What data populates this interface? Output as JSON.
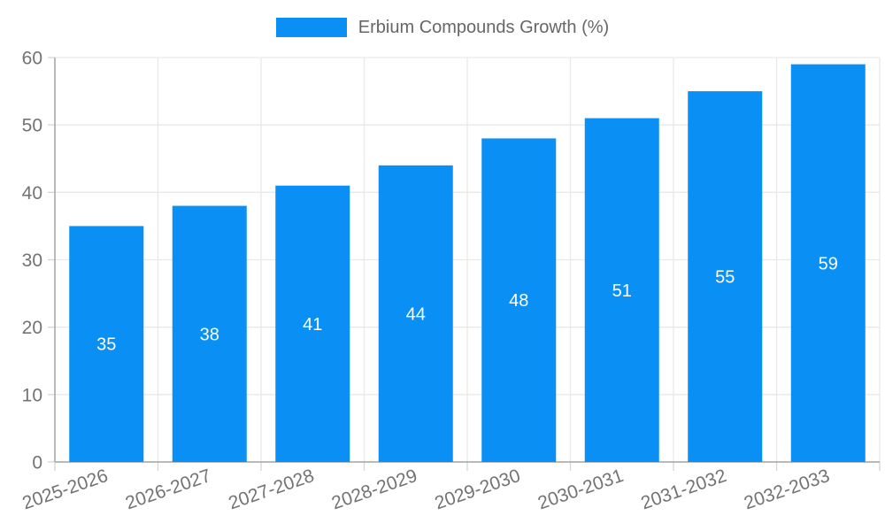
{
  "chart_data": {
    "type": "bar",
    "title": "",
    "series_name": "Erbium Compounds Growth (%)",
    "categories": [
      "2025-2026",
      "2026-2027",
      "2027-2028",
      "2028-2029",
      "2029-2030",
      "2030-2031",
      "2031-2032",
      "2032-2033"
    ],
    "values": [
      35,
      38,
      41,
      44,
      48,
      51,
      55,
      59
    ],
    "xlabel": "",
    "ylabel": "",
    "ylim": [
      0,
      60
    ],
    "yticks": [
      0,
      10,
      20,
      30,
      40,
      50,
      60
    ],
    "grid": true,
    "legend_position": "top",
    "bar_value_labels_inside": true
  },
  "colors": {
    "bar": "#0A90F5",
    "grid": "#E9E9E9",
    "axis": "#A3A3A3",
    "tick": "#D6D6D6",
    "tick_label": "#737373",
    "legend_label": "#666666",
    "bar_label": "#FFFFFF",
    "background": "#FFFFFF"
  }
}
